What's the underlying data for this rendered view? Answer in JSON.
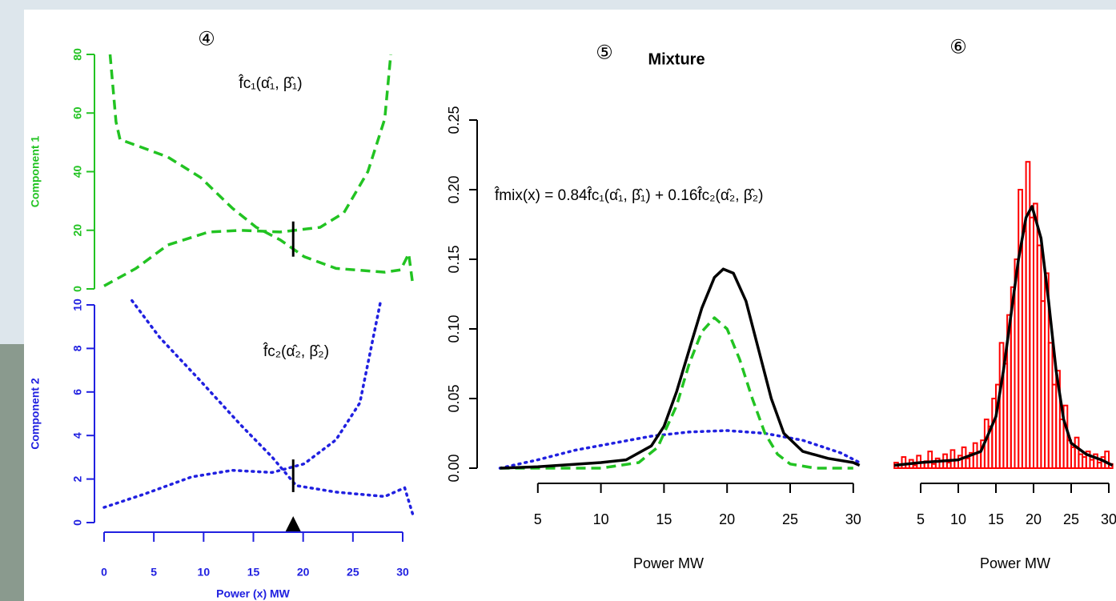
{
  "chart_data": [
    {
      "type": "line",
      "panel_label": "④",
      "x_label": "Power (x) MW",
      "xlim": [
        0,
        30
      ],
      "xticks": [
        0,
        5,
        10,
        15,
        20,
        25,
        30
      ],
      "axis_color": "#2020e0",
      "marker_x": 19,
      "components": [
        {
          "name": "Component 1",
          "color": "#22c322",
          "dash": "dashed",
          "ylim": [
            0,
            80
          ],
          "yticks": [
            0,
            20,
            40,
            60,
            80
          ],
          "annotation": "f̂c₁(α̂₁, β̂₁)",
          "marker": [
            11,
            23
          ],
          "series": [
            {
              "color": "#22c322",
              "x": [
                0.6,
                1.2,
                1.6,
                3.2,
                6.4,
                9.7,
                12.9,
                15.3,
                17.7,
                20.1,
                23.3,
                28.2,
                29.8,
                30.6,
                31
              ],
              "values": [
                80,
                57,
                51,
                49,
                45,
                38,
                27.5,
                21,
                16.7,
                11,
                7,
                5.7,
                6.5,
                12,
                2
              ]
            },
            {
              "color": "#22c322",
              "x": [
                0,
                3.2,
                6.4,
                10.5,
                13.7,
                17.7,
                21.7,
                24.1,
                26.5,
                28.2,
                28.8
              ],
              "values": [
                1,
                7,
                15,
                19.4,
                20,
                19.4,
                21,
                26,
                40,
                58,
                80
              ]
            }
          ]
        },
        {
          "name": "Component 2",
          "color": "#2020e0",
          "dash": "dotted",
          "ylim": [
            0,
            10
          ],
          "yticks": [
            0,
            2,
            4,
            6,
            8,
            10
          ],
          "annotation": "f̂c₂(α̂₂, β̂₂)",
          "marker": [
            1.4,
            2.9
          ],
          "series": [
            {
              "color": "#2020e0",
              "x": [
                2.8,
                5.6,
                9.7,
                13.7,
                16.9,
                19.3,
                23.3,
                28.2,
                30.2,
                31
              ],
              "values": [
                10.2,
                8.5,
                6.5,
                4.5,
                3,
                1.7,
                1.4,
                1.2,
                1.6,
                0.4
              ]
            },
            {
              "color": "#2020e0",
              "x": [
                0,
                4,
                8.8,
                12.9,
                16.9,
                20.1,
                23.3,
                25.7,
                27.8
              ],
              "values": [
                0.7,
                1.3,
                2.1,
                2.4,
                2.3,
                2.7,
                3.8,
                5.5,
                10.2
              ]
            }
          ]
        }
      ]
    },
    {
      "type": "line",
      "panel_label": "⑤",
      "title": "Mixture",
      "x_label": "Power MW",
      "annotation": "f̂mix(x) = 0.84f̂c₁(α̂₁, β̂₁) + 0.16f̂c₂(α̂₂, β̂₂)",
      "xlim": [
        0,
        31
      ],
      "xticks": [
        5,
        10,
        15,
        20,
        25,
        30
      ],
      "ylim": [
        0,
        0.25
      ],
      "yticks": [
        {
          "value": 0,
          "label": "0.00"
        },
        {
          "value": 0.05,
          "label": "0.05"
        },
        {
          "value": 0.1,
          "label": "0.10"
        },
        {
          "value": 0.15,
          "label": "0.15"
        },
        {
          "value": 0.2,
          "label": "0.20"
        },
        {
          "value": 0.25,
          "label": "0.25"
        }
      ],
      "series": [
        {
          "color": "#2020e0",
          "dash": "dotted",
          "x": [
            2,
            5,
            8,
            11,
            14,
            17,
            20,
            23,
            26,
            29,
            30.5
          ],
          "values": [
            0,
            0.006,
            0.013,
            0.018,
            0.023,
            0.026,
            0.027,
            0.025,
            0.02,
            0.011,
            0.004
          ]
        },
        {
          "color": "#22c322",
          "dash": "dashed",
          "x": [
            2,
            10,
            13,
            14.5,
            16,
            17,
            18,
            19,
            20,
            21,
            22,
            23,
            24,
            25,
            27,
            30
          ],
          "values": [
            0,
            0,
            0.004,
            0.015,
            0.045,
            0.075,
            0.098,
            0.108,
            0.1,
            0.078,
            0.05,
            0.025,
            0.01,
            0.003,
            0,
            0
          ]
        },
        {
          "color": "#000000",
          "dash": "solid",
          "x": [
            2,
            5,
            10,
            12,
            14,
            15,
            16,
            17,
            18,
            19,
            19.7,
            20.5,
            21.5,
            22.5,
            23.5,
            24.5,
            26,
            28,
            30,
            30.5
          ],
          "values": [
            0,
            0.001,
            0.004,
            0.006,
            0.016,
            0.03,
            0.055,
            0.085,
            0.115,
            0.137,
            0.143,
            0.14,
            0.12,
            0.085,
            0.05,
            0.025,
            0.012,
            0.007,
            0.004,
            0.002
          ]
        }
      ]
    },
    {
      "type": "histogram",
      "panel_label": "⑥",
      "x_label": "Power MW",
      "xlim": [
        0,
        31
      ],
      "xticks": [
        5,
        10,
        15,
        20,
        25,
        30
      ],
      "ylim": [
        0,
        0.25
      ],
      "color": "#ff0000",
      "bins": [
        1.5,
        2,
        2.5,
        3,
        3.5,
        4,
        4.5,
        5,
        5.5,
        6,
        6.5,
        7,
        7.5,
        8,
        8.5,
        9,
        9.5,
        10,
        10.5,
        11,
        11.5,
        12,
        12.5,
        13,
        13.5,
        14,
        14.5,
        15,
        15.5,
        16,
        16.5,
        17,
        17.5,
        18,
        18.5,
        19,
        19.5,
        20,
        20.5,
        21,
        21.5,
        22,
        22.5,
        23,
        23.5,
        24,
        24.5,
        25,
        25.5,
        26,
        26.5,
        27,
        27.5,
        28,
        28.5,
        29,
        29.5,
        30,
        30.5
      ],
      "values": [
        0.004,
        0.002,
        0.008,
        0.003,
        0.006,
        0.002,
        0.009,
        0.004,
        0.005,
        0.012,
        0.003,
        0.007,
        0.005,
        0.01,
        0.004,
        0.013,
        0.006,
        0.009,
        0.015,
        0.007,
        0.011,
        0.018,
        0.012,
        0.02,
        0.035,
        0.03,
        0.05,
        0.06,
        0.09,
        0.075,
        0.11,
        0.13,
        0.15,
        0.2,
        0.17,
        0.22,
        0.18,
        0.19,
        0.16,
        0.12,
        0.14,
        0.09,
        0.06,
        0.07,
        0.035,
        0.045,
        0.02,
        0.015,
        0.022,
        0.01,
        0.008,
        0.012,
        0.006,
        0.01,
        0.004,
        0.008,
        0.012,
        0.003
      ],
      "overlay": {
        "color": "#000000",
        "x": [
          1.5,
          5,
          10,
          13,
          15,
          16,
          17,
          18,
          19,
          19.8,
          21,
          22,
          23,
          24,
          25,
          27,
          29,
          30.5
        ],
        "values": [
          0.002,
          0.004,
          0.006,
          0.012,
          0.037,
          0.07,
          0.11,
          0.15,
          0.18,
          0.188,
          0.165,
          0.12,
          0.07,
          0.035,
          0.018,
          0.01,
          0.006,
          0.002
        ]
      }
    }
  ]
}
